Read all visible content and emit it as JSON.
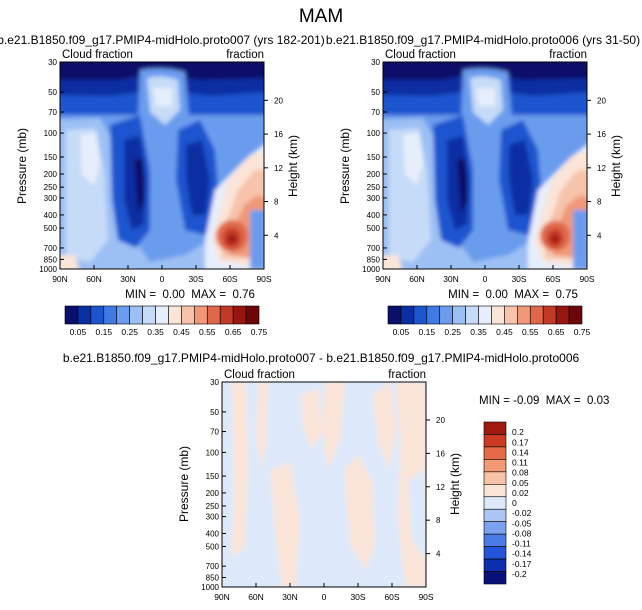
{
  "page_title": "MAM",
  "colors": {
    "scale_blue_red": [
      "#08106b",
      "#0a2fa3",
      "#1d55cf",
      "#3f7ae4",
      "#6b9cee",
      "#9cc0f4",
      "#c6dbf8",
      "#e7eefb",
      "#fbe4d8",
      "#f7c3aa",
      "#f09877",
      "#e0674a",
      "#c23925",
      "#99160f",
      "#6d0707"
    ],
    "scale_diff": [
      "#08107a",
      "#0c2fb0",
      "#2355d8",
      "#4a7be6",
      "#7ca2ee",
      "#adc7f4",
      "#dde9fb",
      "#fbe4d8",
      "#f7c2a6",
      "#f19a74",
      "#e66a47",
      "#cb3a22",
      "#a01a0f"
    ]
  },
  "chart_data": [
    {
      "type": "heatmap",
      "title": "b.e21.B1850.f09_g17.PMIP4-midHolo.proto007 (yrs 182-201)",
      "left_string": "Cloud fraction",
      "right_string": "fraction",
      "ylabel": "Pressure (mb)",
      "ylabel_right": "Height (km)",
      "x_ticks": [
        "90N",
        "60N",
        "30N",
        "0",
        "30S",
        "60S",
        "90S"
      ],
      "y_ticks": [
        "30",
        "50",
        "70",
        "100",
        "150",
        "200",
        "250",
        "300",
        "400",
        "500",
        "700",
        "850",
        "1000"
      ],
      "y_ticks_right": [
        "20",
        "16",
        "12",
        "8",
        "4"
      ],
      "xlim": [
        90,
        -90
      ],
      "ylim": [
        1000,
        30
      ],
      "min_max_label": "MIN =  0.00  MAX =  0.76",
      "stats": {
        "min": 0.0,
        "max": 0.76
      },
      "colorbar_labels": [
        "0.05",
        "0.15",
        "0.25",
        "0.35",
        "0.45",
        "0.55",
        "0.65",
        "0.75"
      ],
      "contour_levels": [
        0.05,
        0.1,
        0.15,
        0.2,
        0.25,
        0.3,
        0.35,
        0.4,
        0.45,
        0.5,
        0.55,
        0.6,
        0.65,
        0.7,
        0.75
      ]
    },
    {
      "type": "heatmap",
      "title": "b.e21.B1850.f09_g17.PMIP4-midHolo.proto006 (yrs 31-50)",
      "left_string": "Cloud fraction",
      "right_string": "fraction",
      "ylabel": "Pressure (mb)",
      "ylabel_right": "Height (km)",
      "x_ticks": [
        "90N",
        "60N",
        "30N",
        "0",
        "30S",
        "60S",
        "90S"
      ],
      "y_ticks": [
        "30",
        "50",
        "70",
        "100",
        "150",
        "200",
        "250",
        "300",
        "400",
        "500",
        "700",
        "850",
        "1000"
      ],
      "y_ticks_right": [
        "20",
        "16",
        "12",
        "8",
        "4"
      ],
      "xlim": [
        90,
        -90
      ],
      "ylim": [
        1000,
        30
      ],
      "min_max_label": "MIN =  0.00  MAX =  0.75",
      "stats": {
        "min": 0.0,
        "max": 0.75
      },
      "colorbar_labels": [
        "0.05",
        "0.15",
        "0.25",
        "0.35",
        "0.45",
        "0.55",
        "0.65",
        "0.75"
      ],
      "contour_levels": [
        0.05,
        0.1,
        0.15,
        0.2,
        0.25,
        0.3,
        0.35,
        0.4,
        0.45,
        0.5,
        0.55,
        0.6,
        0.65,
        0.7,
        0.75
      ]
    },
    {
      "type": "heatmap",
      "title": "b.e21.B1850.f09_g17.PMIP4-midHolo.proto007 - b.e21.B1850.f09_g17.PMIP4-midHolo.proto006",
      "left_string": "Cloud fraction",
      "right_string": "fraction",
      "ylabel": "Pressure (mb)",
      "ylabel_right": "Height (km)",
      "x_ticks": [
        "90N",
        "60N",
        "30N",
        "0",
        "30S",
        "60S",
        "90S"
      ],
      "y_ticks": [
        "30",
        "50",
        "70",
        "100",
        "150",
        "200",
        "250",
        "300",
        "400",
        "500",
        "700",
        "850",
        "1000"
      ],
      "y_ticks_right": [
        "20",
        "16",
        "12",
        "8",
        "4"
      ],
      "xlim": [
        90,
        -90
      ],
      "ylim": [
        1000,
        30
      ],
      "min_max_label": "MIN = -0.09  MAX =  0.03",
      "stats": {
        "min": -0.09,
        "max": 0.03
      },
      "colorbar_labels": [
        "0.2",
        "0.17",
        "0.14",
        "0.11",
        "0.08",
        "0.05",
        "0.02",
        "0",
        "-0.02",
        "-0.05",
        "-0.08",
        "-0.11",
        "-0.14",
        "-0.17",
        "-0.2"
      ]
    }
  ]
}
